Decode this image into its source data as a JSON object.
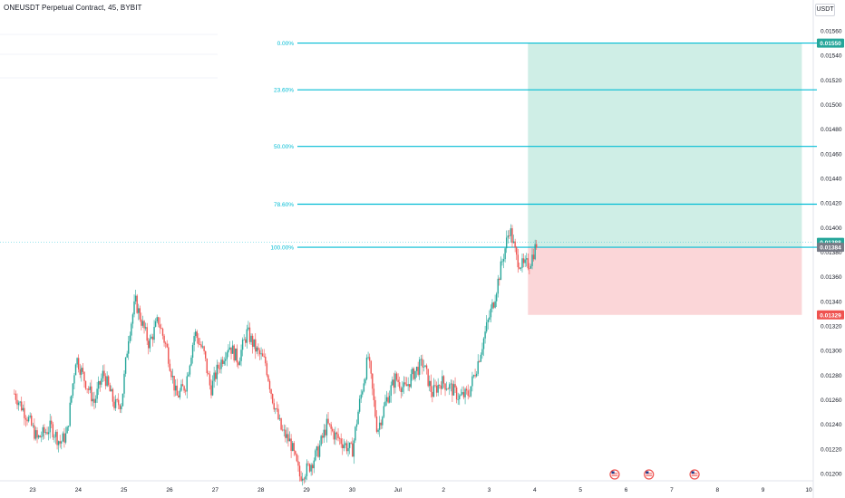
{
  "header": {
    "symbol_title": "ONEUSDT Perpetual Contract, 45, BYBIT",
    "currency": "USDT"
  },
  "colors": {
    "up_candle": "#26a69a",
    "down_candle": "#ef5350",
    "fib_line": "#00bcd4",
    "profit_zone": "#cfeee6",
    "loss_zone": "#fbd6d8",
    "target_label": "#26a69a",
    "stop_label": "#ef5350",
    "last_price_label": "#787b86"
  },
  "chart_data": {
    "type": "candlestick",
    "y_axis": {
      "min": 0.0119,
      "max": 0.01565,
      "ticks": [
        "0.01560",
        "0.01540",
        "0.01520",
        "0.01500",
        "0.01480",
        "0.01460",
        "0.01440",
        "0.01420",
        "0.01400",
        "0.01380",
        "0.01360",
        "0.01340",
        "0.01320",
        "0.01300",
        "0.01280",
        "0.01260",
        "0.01240",
        "0.01220",
        "0.01200"
      ],
      "position": "right"
    },
    "x_axis": {
      "labels": [
        "23",
        "24",
        "25",
        "26",
        "27",
        "28",
        "29",
        "30",
        "Jul",
        "2",
        "3",
        "4",
        "5",
        "6",
        "7",
        "8",
        "9",
        "10"
      ]
    },
    "fib_levels": [
      {
        "label": "0.00%",
        "price": 0.0155
      },
      {
        "label": "23.60%",
        "price": 0.01512
      },
      {
        "label": "50.00%",
        "price": 0.01466
      },
      {
        "label": "78.60%",
        "price": 0.01419
      },
      {
        "label": "100.00%",
        "price": 0.01384
      }
    ],
    "position_tool": {
      "type": "long",
      "entry": 0.01384,
      "target": 0.0155,
      "stop": 0.01329,
      "start_date": "Jul 4",
      "end_date": "Jul 10"
    },
    "price_labels": {
      "target": "0.01550",
      "current": "0.01388",
      "entry": "0.01384",
      "stop": "0.01329"
    },
    "close_path": [
      {
        "t": 22.6,
        "p": 0.01265
      },
      {
        "t": 22.9,
        "p": 0.01245
      },
      {
        "t": 23.1,
        "p": 0.01228
      },
      {
        "t": 23.4,
        "p": 0.01238
      },
      {
        "t": 23.6,
        "p": 0.01225
      },
      {
        "t": 23.75,
        "p": 0.01232
      },
      {
        "t": 23.95,
        "p": 0.01295
      },
      {
        "t": 24.15,
        "p": 0.01275
      },
      {
        "t": 24.35,
        "p": 0.01258
      },
      {
        "t": 24.55,
        "p": 0.01282
      },
      {
        "t": 24.8,
        "p": 0.01255
      },
      {
        "t": 24.95,
        "p": 0.01258
      },
      {
        "t": 25.1,
        "p": 0.01312
      },
      {
        "t": 25.25,
        "p": 0.0134
      },
      {
        "t": 25.4,
        "p": 0.01322
      },
      {
        "t": 25.55,
        "p": 0.01305
      },
      {
        "t": 25.75,
        "p": 0.01325
      },
      {
        "t": 25.95,
        "p": 0.013
      },
      {
        "t": 26.15,
        "p": 0.01262
      },
      {
        "t": 26.35,
        "p": 0.01272
      },
      {
        "t": 26.55,
        "p": 0.01315
      },
      {
        "t": 26.75,
        "p": 0.01298
      },
      {
        "t": 26.9,
        "p": 0.01268
      },
      {
        "t": 27.05,
        "p": 0.01285
      },
      {
        "t": 27.3,
        "p": 0.01305
      },
      {
        "t": 27.5,
        "p": 0.01292
      },
      {
        "t": 27.7,
        "p": 0.01315
      },
      {
        "t": 27.9,
        "p": 0.013
      },
      {
        "t": 28.1,
        "p": 0.0129
      },
      {
        "t": 28.25,
        "p": 0.01262
      },
      {
        "t": 28.45,
        "p": 0.01235
      },
      {
        "t": 28.65,
        "p": 0.01225
      },
      {
        "t": 28.85,
        "p": 0.01198
      },
      {
        "t": 29.05,
        "p": 0.01205
      },
      {
        "t": 29.25,
        "p": 0.01218
      },
      {
        "t": 29.45,
        "p": 0.0124
      },
      {
        "t": 29.6,
        "p": 0.01232
      },
      {
        "t": 29.8,
        "p": 0.01225
      },
      {
        "t": 30.0,
        "p": 0.01218
      },
      {
        "t": 30.15,
        "p": 0.01255
      },
      {
        "t": 30.35,
        "p": 0.01295
      },
      {
        "t": 30.55,
        "p": 0.01235
      },
      {
        "t": 30.75,
        "p": 0.0126
      },
      {
        "t": 30.95,
        "p": 0.01278
      },
      {
        "t": 31.15,
        "p": 0.01268
      },
      {
        "t": 31.35,
        "p": 0.01282
      },
      {
        "t": 31.55,
        "p": 0.0129
      },
      {
        "t": 31.75,
        "p": 0.01265
      },
      {
        "t": 31.95,
        "p": 0.01275
      },
      {
        "t": 32.15,
        "p": 0.0127
      },
      {
        "t": 32.35,
        "p": 0.01262
      },
      {
        "t": 32.55,
        "p": 0.01265
      },
      {
        "t": 32.75,
        "p": 0.0129
      },
      {
        "t": 32.95,
        "p": 0.0132
      },
      {
        "t": 33.1,
        "p": 0.0134
      },
      {
        "t": 33.3,
        "p": 0.01375
      },
      {
        "t": 33.45,
        "p": 0.014
      },
      {
        "t": 33.6,
        "p": 0.01375
      },
      {
        "t": 33.75,
        "p": 0.01368
      },
      {
        "t": 33.9,
        "p": 0.01372
      },
      {
        "t": 34.05,
        "p": 0.01388
      }
    ],
    "event_markers": [
      {
        "t": 35.75,
        "icon": "us-flag-icon"
      },
      {
        "t": 36.5,
        "icon": "us-flag-icon"
      },
      {
        "t": 37.5,
        "icon": "us-flag-icon"
      }
    ]
  }
}
